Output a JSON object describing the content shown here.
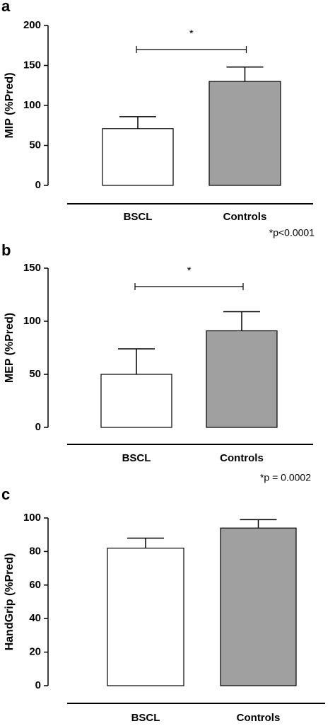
{
  "chart_data": [
    {
      "type": "bar",
      "panel": "a",
      "ylabel": "MIP (%Pred)",
      "categories": [
        "BSCL",
        "Controls"
      ],
      "values": [
        71,
        130
      ],
      "errors": [
        15,
        18
      ],
      "colors": [
        "#ffffff",
        "#a0a0a0"
      ],
      "ylim": [
        0,
        200
      ],
      "yticks": [
        0,
        50,
        100,
        150,
        200
      ],
      "significance": "*",
      "note": "*p<0.0001"
    },
    {
      "type": "bar",
      "panel": "b",
      "ylabel": "MEP (%Pred)",
      "categories": [
        "BSCL",
        "Controls"
      ],
      "values": [
        50,
        91
      ],
      "errors": [
        24,
        18
      ],
      "colors": [
        "#ffffff",
        "#a0a0a0"
      ],
      "ylim": [
        0,
        150
      ],
      "yticks": [
        0,
        50,
        100,
        150
      ],
      "significance": "*",
      "note": "*p = 0.0002"
    },
    {
      "type": "bar",
      "panel": "c",
      "ylabel": "HandGrip (%Pred)",
      "categories": [
        "BSCL",
        "Controls"
      ],
      "values": [
        82,
        94
      ],
      "errors": [
        6,
        5
      ],
      "colors": [
        "#ffffff",
        "#a0a0a0"
      ],
      "ylim": [
        0,
        100
      ],
      "yticks": [
        0,
        20,
        40,
        60,
        80,
        100
      ]
    }
  ]
}
